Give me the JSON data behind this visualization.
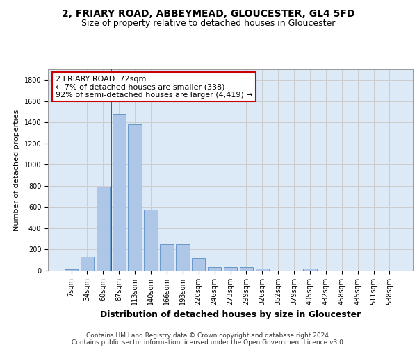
{
  "title_line1": "2, FRIARY ROAD, ABBEYMEAD, GLOUCESTER, GL4 5FD",
  "title_line2": "Size of property relative to detached houses in Gloucester",
  "xlabel": "Distribution of detached houses by size in Gloucester",
  "ylabel": "Number of detached properties",
  "categories": [
    "7sqm",
    "34sqm",
    "60sqm",
    "87sqm",
    "113sqm",
    "140sqm",
    "166sqm",
    "193sqm",
    "220sqm",
    "246sqm",
    "273sqm",
    "299sqm",
    "326sqm",
    "352sqm",
    "379sqm",
    "405sqm",
    "432sqm",
    "458sqm",
    "485sqm",
    "511sqm",
    "538sqm"
  ],
  "values": [
    15,
    130,
    795,
    1480,
    1385,
    575,
    250,
    250,
    120,
    35,
    30,
    30,
    20,
    0,
    0,
    20,
    0,
    0,
    0,
    0,
    0
  ],
  "bar_color": "#aec6e8",
  "bar_edge_color": "#5a8fc2",
  "vline_color": "#cc0000",
  "vline_x_index": 2.5,
  "annotation_text": "2 FRIARY ROAD: 72sqm\n← 7% of detached houses are smaller (338)\n92% of semi-detached houses are larger (4,419) →",
  "annotation_box_color": "#ffffff",
  "annotation_box_edge_color": "#cc0000",
  "ylim": [
    0,
    1900
  ],
  "yticks": [
    0,
    200,
    400,
    600,
    800,
    1000,
    1200,
    1400,
    1600,
    1800
  ],
  "grid_color": "#cccccc",
  "background_color": "#dce9f7",
  "footer_line1": "Contains HM Land Registry data © Crown copyright and database right 2024.",
  "footer_line2": "Contains public sector information licensed under the Open Government Licence v3.0.",
  "title_fontsize": 10,
  "subtitle_fontsize": 9,
  "xlabel_fontsize": 9,
  "ylabel_fontsize": 8,
  "tick_fontsize": 7,
  "footer_fontsize": 6.5,
  "annot_fontsize": 8
}
